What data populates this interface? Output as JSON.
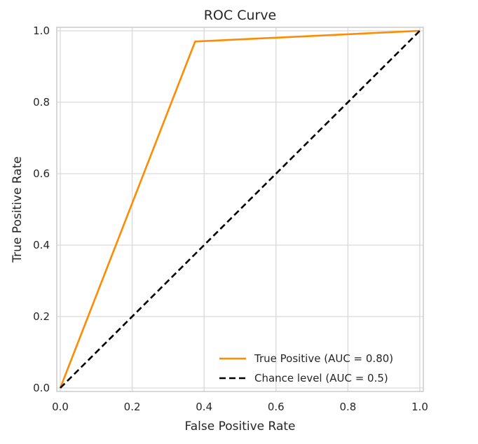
{
  "chart_data": {
    "type": "line",
    "title": "ROC Curve",
    "xlabel": "False Positive Rate",
    "ylabel": "True Positive Rate",
    "xlim": [
      0.0,
      1.0
    ],
    "ylim": [
      0.0,
      1.0
    ],
    "grid": true,
    "legend_position": "lower-right",
    "xticks": [
      0.0,
      0.2,
      0.4,
      0.6,
      0.8,
      1.0
    ],
    "xtick_labels": [
      "0.0",
      "0.2",
      "0.4",
      "0.6",
      "0.8",
      "1.0"
    ],
    "yticks": [
      0.0,
      0.2,
      0.4,
      0.6,
      0.8,
      1.0
    ],
    "ytick_labels": [
      "0.0",
      "0.2",
      "0.4",
      "0.6",
      "0.8",
      "1.0"
    ],
    "series": [
      {
        "name": "True Positive (AUC = 0.80)",
        "color": "#ff8c00",
        "style": "solid",
        "x": [
          0.0,
          0.375,
          1.0
        ],
        "y": [
          0.0,
          0.97,
          1.0
        ]
      },
      {
        "name": "Chance level (AUC = 0.5)",
        "color": "#000000",
        "style": "dashed",
        "x": [
          0.0,
          1.0
        ],
        "y": [
          0.0,
          1.0
        ]
      }
    ]
  },
  "colors": {
    "grid": "#d9d9d9",
    "frame": "#cccccc",
    "text": "#262626"
  }
}
